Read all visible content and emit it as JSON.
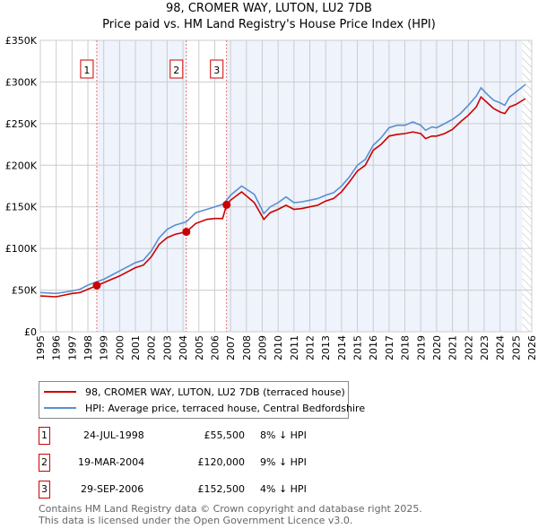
{
  "chart_data": {
    "type": "line",
    "title": "98, CROMER WAY, LUTON, LU2 7DB",
    "subtitle": "Price paid vs. HM Land Registry's House Price Index (HPI)",
    "xlim": [
      1995,
      2026
    ],
    "ylim": [
      0,
      350000
    ],
    "x_ticks": [
      "1995",
      "1996",
      "1997",
      "1998",
      "1999",
      "2000",
      "2001",
      "2002",
      "2003",
      "2004",
      "2005",
      "2006",
      "2007",
      "2008",
      "2009",
      "2010",
      "2011",
      "2012",
      "2013",
      "2014",
      "2015",
      "2016",
      "2017",
      "2018",
      "2019",
      "2020",
      "2021",
      "2022",
      "2023",
      "2024",
      "2025",
      "2026"
    ],
    "y_ticks": [
      {
        "v": 0,
        "label": "£0"
      },
      {
        "v": 50000,
        "label": "£50K"
      },
      {
        "v": 100000,
        "label": "£100K"
      },
      {
        "v": 150000,
        "label": "£150K"
      },
      {
        "v": 200000,
        "label": "£200K"
      },
      {
        "v": 250000,
        "label": "£250K"
      },
      {
        "v": 300000,
        "label": "£300K"
      },
      {
        "v": 350000,
        "label": "£350K"
      }
    ],
    "grid": true,
    "series": [
      {
        "name": "98, CROMER WAY, LUTON, LU2 7DB (terraced house)",
        "color": "#cc0000",
        "x": [
          1995,
          1996,
          1997,
          1997.5,
          1998,
          1998.56,
          1999,
          2000,
          2001,
          2001.5,
          2002,
          2002.5,
          2003,
          2003.5,
          2004.21,
          2004.8,
          2005.5,
          2006,
          2006.5,
          2006.75,
          2007,
          2007.7,
          2008.5,
          2009.1,
          2009.5,
          2010,
          2010.5,
          2011,
          2011.5,
          2012,
          2012.5,
          2013,
          2013.5,
          2014,
          2014.5,
          2015,
          2015.5,
          2016,
          2016.5,
          2017,
          2017.5,
          2018,
          2018.5,
          2019,
          2019.3,
          2019.7,
          2020,
          2020.5,
          2021,
          2021.5,
          2022,
          2022.5,
          2022.8,
          2023.2,
          2023.6,
          2024,
          2024.3,
          2024.6,
          2025,
          2025.6
        ],
        "y": [
          43000,
          42000,
          46000,
          47000,
          51000,
          55500,
          59000,
          67000,
          77000,
          80000,
          90000,
          105000,
          113000,
          117000,
          120000,
          130000,
          135000,
          136000,
          136000,
          152500,
          158000,
          168000,
          155000,
          135000,
          143000,
          147000,
          152000,
          147000,
          148000,
          150000,
          152000,
          157000,
          160000,
          168000,
          180000,
          193000,
          200000,
          218000,
          225000,
          235000,
          237000,
          238000,
          240000,
          238000,
          232000,
          235000,
          235000,
          238000,
          243000,
          252000,
          260000,
          270000,
          282000,
          275000,
          268000,
          264000,
          262000,
          270000,
          273000,
          280000
        ]
      },
      {
        "name": "HPI: Average price, terraced house, Central Bedfordshire",
        "color": "#5b8fd0",
        "x": [
          1995,
          1996,
          1997,
          1997.5,
          1998,
          1998.56,
          1999,
          2000,
          2001,
          2001.5,
          2002,
          2002.5,
          2003,
          2003.5,
          2004.21,
          2004.8,
          2005.5,
          2006,
          2006.5,
          2006.75,
          2007,
          2007.7,
          2008.5,
          2009.1,
          2009.5,
          2010,
          2010.5,
          2011,
          2011.5,
          2012,
          2012.5,
          2013,
          2013.5,
          2014,
          2014.5,
          2015,
          2015.5,
          2016,
          2016.5,
          2017,
          2017.5,
          2018,
          2018.5,
          2019,
          2019.3,
          2019.7,
          2020,
          2020.5,
          2021,
          2021.5,
          2022,
          2022.5,
          2022.8,
          2023.2,
          2023.6,
          2024,
          2024.3,
          2024.6,
          2025,
          2025.6
        ],
        "y": [
          47000,
          46000,
          49000,
          51000,
          56000,
          60000,
          63000,
          73000,
          83000,
          86000,
          97000,
          113000,
          123000,
          128000,
          132000,
          143000,
          147000,
          150000,
          153000,
          158000,
          164000,
          175000,
          165000,
          142000,
          150000,
          155000,
          162000,
          155000,
          156000,
          158000,
          160000,
          164000,
          167000,
          175000,
          186000,
          200000,
          207000,
          224000,
          233000,
          245000,
          248000,
          248000,
          252000,
          248000,
          242000,
          246000,
          245000,
          250000,
          255000,
          262000,
          272000,
          283000,
          293000,
          285000,
          278000,
          275000,
          272000,
          282000,
          288000,
          297000
        ]
      }
    ],
    "sales": [
      {
        "id": "1",
        "x": 1998.56,
        "y": 55500,
        "date": "24-JUL-1998",
        "price": "£55,500",
        "diff": "8% ↓ HPI"
      },
      {
        "id": "2",
        "x": 2004.21,
        "y": 120000,
        "date": "19-MAR-2004",
        "price": "£120,000",
        "diff": "9% ↓ HPI"
      },
      {
        "id": "3",
        "x": 2006.75,
        "y": 152500,
        "date": "29-SEP-2006",
        "price": "£152,500",
        "diff": "4% ↓ HPI"
      }
    ],
    "hatched_from": 2025.4,
    "legend": "below chart"
  },
  "footer": {
    "line1": "Contains HM Land Registry data © Crown copyright and database right 2025.",
    "line2": "This data is licensed under the Open Government Licence v3.0."
  }
}
